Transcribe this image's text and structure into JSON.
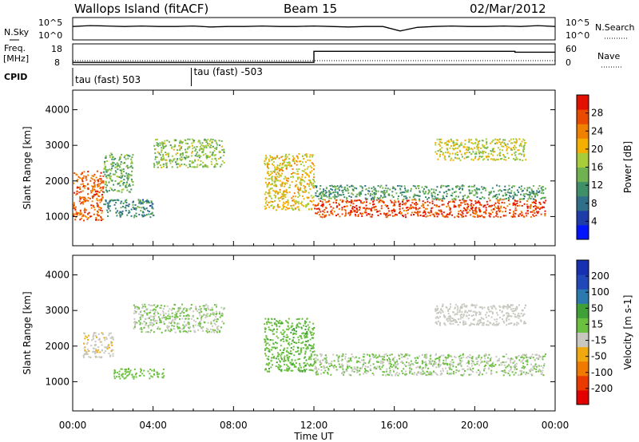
{
  "header": {
    "station": "Wallops Island (fitACF)",
    "beam": "Beam 15",
    "date": "02/Mar/2012"
  },
  "noise_panel": {
    "left_label": "N.Sky",
    "right_label": "N.Search",
    "tick_top": "10^5",
    "tick_bottom": "10^0",
    "sky_level": [
      3.0,
      3.2,
      3.1,
      3.0,
      3.1,
      3.0,
      3.0,
      3.1,
      2.9,
      3.0,
      3.0,
      3.1,
      3.0,
      3.0,
      3.1,
      3.0,
      2.9,
      3.0,
      3.0,
      2.0,
      2.8,
      3.0,
      3.1,
      3.0,
      3.0,
      3.1,
      3.0,
      3.2,
      3.0
    ]
  },
  "freq_panel": {
    "left_label_1": "Freq.",
    "left_label_2": "[MHz]",
    "right_label": "Nave",
    "left_ticks": [
      "18",
      "8"
    ],
    "right_ticks": [
      "60",
      "0"
    ],
    "freq_steps": [
      {
        "t": 0.0,
        "mhz": 8.5
      },
      {
        "t": 12.0,
        "mhz": 17.2
      },
      {
        "t": 22.0,
        "mhz": 16.5
      },
      {
        "t": 24.0,
        "mhz": 16.5
      }
    ]
  },
  "cpid": {
    "label": "CPID",
    "segments": [
      {
        "start": 0.0,
        "text": "tau (fast) 503"
      },
      {
        "start": 5.9,
        "text": "tau (fast) -503"
      }
    ]
  },
  "chart_data": [
    {
      "type": "heatmap",
      "title": "",
      "xlabel": "Time UT",
      "ylabel": "Slant Range [km]",
      "xlim": [
        0,
        24
      ],
      "ylim": [
        180,
        4550
      ],
      "x_ticks": [
        "00:00",
        "04:00",
        "08:00",
        "12:00",
        "16:00",
        "20:00",
        "00:00"
      ],
      "y_ticks": [
        1000,
        2000,
        3000,
        4000
      ],
      "colorbar": {
        "label": "Power [dB]",
        "range": [
          0,
          32
        ],
        "ticks": [
          "4",
          "8",
          "12",
          "16",
          "20",
          "24",
          "28"
        ],
        "colors": [
          "#0014ff",
          "#1e3da8",
          "#2f6f8a",
          "#3f8f68",
          "#6fb24f",
          "#a8cc3a",
          "#f3b000",
          "#f08000",
          "#ea4a00",
          "#e31000"
        ]
      },
      "scatter_bands": [
        {
          "t0": 0.0,
          "t1": 1.5,
          "r0": 900,
          "r1": 2300,
          "level": 26
        },
        {
          "t0": 1.5,
          "t1": 3.0,
          "r0": 1700,
          "r1": 2800,
          "level": 14
        },
        {
          "t0": 4.0,
          "t1": 7.5,
          "r0": 2400,
          "r1": 3200,
          "level": 16
        },
        {
          "t0": 1.5,
          "t1": 4.0,
          "r0": 1000,
          "r1": 1500,
          "level": 10
        },
        {
          "t0": 12.0,
          "t1": 23.5,
          "r0": 1000,
          "r1": 1500,
          "level": 28
        },
        {
          "t0": 12.0,
          "t1": 23.5,
          "r0": 1500,
          "r1": 1900,
          "level": 12
        },
        {
          "t0": 9.5,
          "t1": 12.0,
          "r0": 1200,
          "r1": 2800,
          "level": 20
        },
        {
          "t0": 18.0,
          "t1": 22.5,
          "r0": 2600,
          "r1": 3200,
          "level": 18
        }
      ]
    },
    {
      "type": "heatmap",
      "title": "",
      "xlabel": "Time UT",
      "ylabel": "Slant Range [km]",
      "xlim": [
        0,
        24
      ],
      "ylim": [
        180,
        4550
      ],
      "x_ticks": [
        "00:00",
        "04:00",
        "08:00",
        "12:00",
        "16:00",
        "20:00",
        "00:00"
      ],
      "y_ticks": [
        1000,
        2000,
        3000,
        4000
      ],
      "colorbar": {
        "label": "Velocity [m s-1]",
        "range": [
          -250,
          250
        ],
        "ticks": [
          "200",
          "100",
          "50",
          "15",
          "-15",
          "-50",
          "-100",
          "-200"
        ],
        "colors": [
          "#e50000",
          "#ea3a00",
          "#f07a00",
          "#f0aa10",
          "#c8c8c0",
          "#6cc040",
          "#3fa038",
          "#2a7ab0",
          "#2048b8",
          "#1530b0"
        ]
      },
      "scatter_bands": [
        {
          "t0": 0.5,
          "t1": 2.0,
          "r0": 1700,
          "r1": 2400,
          "level": -40
        },
        {
          "t0": 2.0,
          "t1": 4.5,
          "r0": 1100,
          "r1": 1400,
          "level": 30
        },
        {
          "t0": 3.0,
          "t1": 7.5,
          "r0": 2400,
          "r1": 3200,
          "level": 0
        },
        {
          "t0": 12.0,
          "t1": 23.5,
          "r0": 1200,
          "r1": 1800,
          "level": 0
        },
        {
          "t0": 9.5,
          "t1": 12.0,
          "r0": 1300,
          "r1": 2800,
          "level": 40
        },
        {
          "t0": 18.0,
          "t1": 22.5,
          "r0": 2600,
          "r1": 3200,
          "level": -20
        }
      ]
    }
  ]
}
